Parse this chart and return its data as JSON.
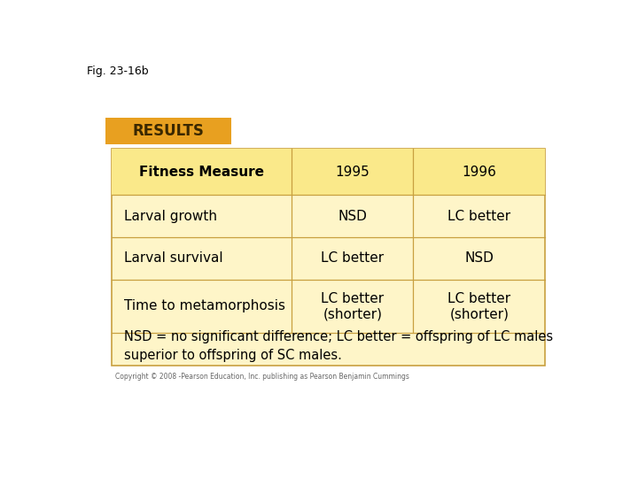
{
  "fig_label": "Fig. 23-16b",
  "results_label": "RESULTS",
  "results_bg": "#E8A020",
  "results_text_color": "#3A2800",
  "table_bg": "#FEF5C8",
  "table_header_bg": "#FAE98A",
  "table_border_color": "#C8A040",
  "header_row": [
    "Fitness Measure",
    "1995",
    "1996"
  ],
  "data_rows": [
    [
      "Larval growth",
      "NSD",
      "LC better"
    ],
    [
      "Larval survival",
      "LC better",
      "NSD"
    ],
    [
      "Time to metamorphosis",
      "LC better\n(shorter)",
      "LC better\n(shorter)"
    ]
  ],
  "footnote": "NSD = no significant difference; LC better = offspring of LC males\nsuperior to offspring of SC males.",
  "copyright": "Copyright © 2008 -Pearson Education, Inc. publishing as Pearson Benjamin Cummings"
}
